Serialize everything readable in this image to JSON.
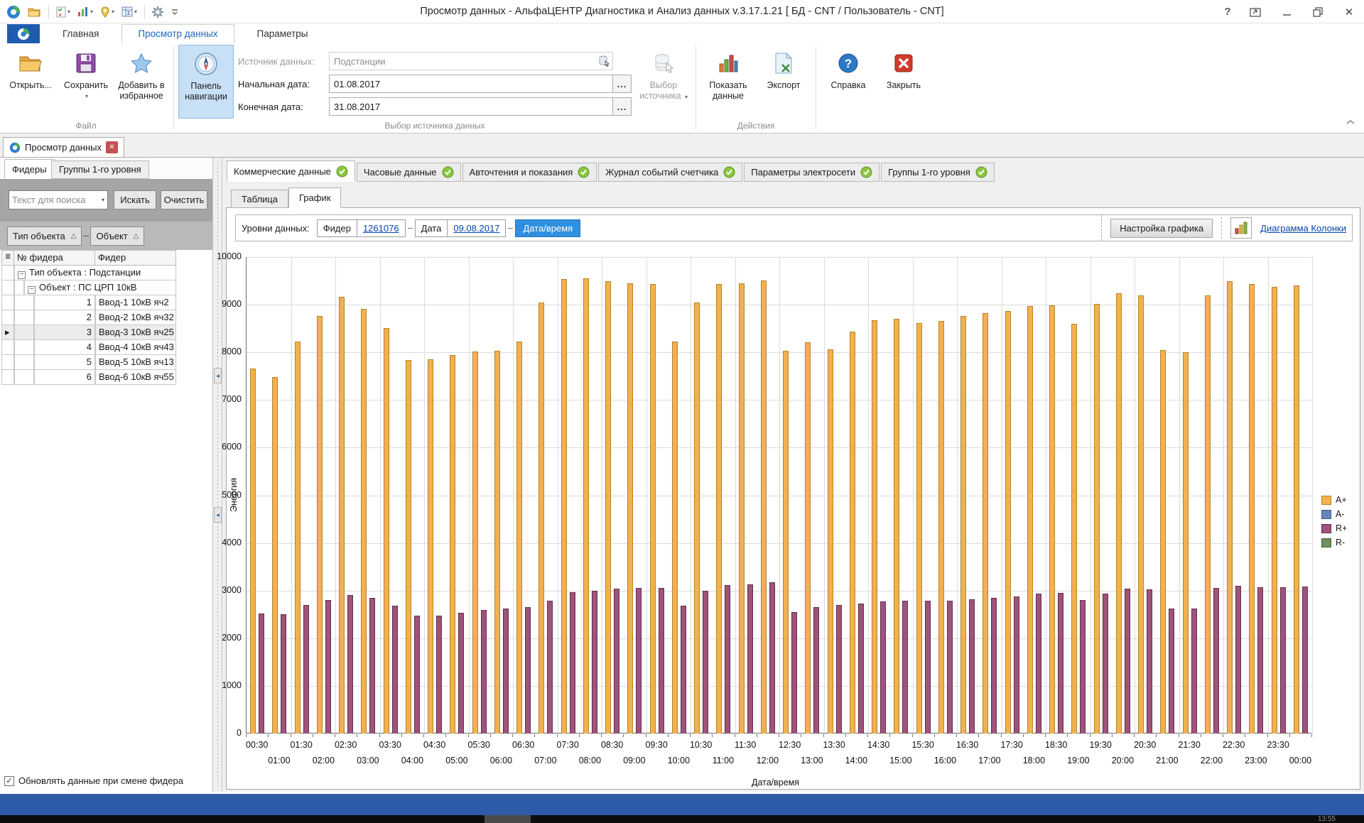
{
  "window": {
    "title": "Просмотр данных - АльфаЦЕНТР Диагностика и Анализ данных v.3.17.1.21  [ БД - CNT / Пользователь - CNT]",
    "taskbar_clock": "13:55"
  },
  "qat": {
    "icons": [
      "app-logo",
      "open-folder",
      "checklist",
      "bar-chart",
      "map-pin",
      "summary-table",
      "settings-gear",
      "customize-ribbon"
    ]
  },
  "ribbon": {
    "tabs": [
      "Главная",
      "Просмотр данных",
      "Параметры"
    ],
    "active_tab": "Просмотр данных",
    "open_label": "Открыть...",
    "save_label": "Сохранить",
    "fav_label_1": "Добавить в",
    "fav_label_2": "избранное",
    "nav_label_1": "Панель",
    "nav_label_2": "навигации",
    "source_field": {
      "label": "Источник данных:",
      "value": "Подстанции"
    },
    "date_from_field": {
      "label": "Начальная дата:",
      "value": "01.08.2017"
    },
    "date_to_field": {
      "label": "Конечная дата:",
      "value": "31.08.2017"
    },
    "ellipsis": "...",
    "source_select_1": "Выбор",
    "source_select_2": "источника",
    "show_data_1": "Показать",
    "show_data_2": "данные",
    "export_label": "Экспорт",
    "help_label": "Справка",
    "close_label": "Закрыть",
    "group_file": "Файл",
    "group_source": "Выбор источника данных",
    "group_actions": "Действия"
  },
  "doc_tab": {
    "label": "Просмотр данных"
  },
  "left_panel": {
    "tabs": [
      "Фидеры",
      "Группы 1-го уровня"
    ],
    "active_tab": "Фидеры",
    "search": {
      "placeholder": "Текст для поиска",
      "search_btn": "Искать",
      "clear_btn": "Очистить"
    },
    "group_by": [
      "Тип объекта",
      "Объект"
    ],
    "grid": {
      "columns": [
        "№ фидера",
        "Фидер"
      ],
      "group_row_1": "Тип объекта : Подстанции",
      "group_row_2": "Объект : ПС ЦРП 10кВ",
      "rows": [
        {
          "num": "1",
          "name": "Ввод-1 10кВ яч2"
        },
        {
          "num": "2",
          "name": "Ввод-2 10кВ яч32"
        },
        {
          "num": "3",
          "name": "Ввод-3 10кВ яч25"
        },
        {
          "num": "4",
          "name": "Ввод-4 10кВ яч43"
        },
        {
          "num": "5",
          "name": "Ввод-5 10кВ яч13"
        },
        {
          "num": "6",
          "name": "Ввод-6 10кВ яч55"
        }
      ],
      "selected_row_num": "3"
    },
    "footer_checkbox": "Обновлять данные при смене фидера",
    "footer_checkbox_checked": true
  },
  "main": {
    "data_tabs": [
      "Коммерческие данные",
      "Часовые данные",
      "Авточтения и показания",
      "Журнал событий счетчика",
      "Параметры электросети",
      "Группы 1-го уровня"
    ],
    "active_data_tab": "Коммерческие данные",
    "view_tabs": [
      "Таблица",
      "График"
    ],
    "active_view_tab": "График",
    "breadcrumb": {
      "label": "Уровни данных:",
      "items": [
        {
          "prefix": "Фидер",
          "value": "1261076"
        },
        {
          "prefix": "Дата",
          "value": "09.08.2017"
        }
      ],
      "current": "Дата/время"
    },
    "chart_controls": {
      "settings_btn": "Настройка графика",
      "type_link": "Диаграмма Колонки"
    }
  },
  "chart_data": {
    "type": "bar",
    "title": "",
    "xlabel": "Дата/время",
    "ylabel": "Энергия",
    "ylim": [
      0,
      10000
    ],
    "ytick_step": 1000,
    "grid": true,
    "legend_position": "right",
    "categories": [
      "00:30",
      "01:00",
      "01:30",
      "02:00",
      "02:30",
      "03:00",
      "03:30",
      "04:00",
      "04:30",
      "05:00",
      "05:30",
      "06:00",
      "06:30",
      "07:00",
      "07:30",
      "08:00",
      "08:30",
      "09:00",
      "09:30",
      "10:00",
      "10:30",
      "11:00",
      "11:30",
      "12:00",
      "12:30",
      "13:00",
      "13:30",
      "14:00",
      "14:30",
      "15:00",
      "15:30",
      "16:00",
      "16:30",
      "17:00",
      "17:30",
      "18:00",
      "18:30",
      "19:00",
      "19:30",
      "20:00",
      "20:30",
      "21:00",
      "21:30",
      "22:00",
      "22:30",
      "23:00",
      "23:30",
      "00:00"
    ],
    "series": [
      {
        "name": "A+",
        "color": "#F2B04F",
        "border": "#B8812C",
        "values": [
          7660,
          7480,
          8230,
          8770,
          9170,
          8910,
          8510,
          7840,
          7860,
          7940,
          8020,
          8040,
          8230,
          9050,
          9540,
          9560,
          9500,
          9450,
          9430,
          8230,
          9040,
          9430,
          9450,
          9510,
          8040,
          8210,
          8060,
          8440,
          8670,
          8700,
          8620,
          8660,
          8770,
          8820,
          8870,
          8970,
          8990,
          8600,
          9010,
          9240,
          9190,
          8050,
          8000,
          9190,
          9490,
          9440,
          9370,
          9410
        ]
      },
      {
        "name": "A-",
        "color": "#6787B7",
        "border": "#3A5E94",
        "values": [
          0,
          0,
          0,
          0,
          0,
          0,
          0,
          0,
          0,
          0,
          0,
          0,
          0,
          0,
          0,
          0,
          0,
          0,
          0,
          0,
          0,
          0,
          0,
          0,
          0,
          0,
          0,
          0,
          0,
          0,
          0,
          0,
          0,
          0,
          0,
          0,
          0,
          0,
          0,
          0,
          0,
          0,
          0,
          0,
          0,
          0,
          0,
          0
        ]
      },
      {
        "name": "R+",
        "color": "#A0527C",
        "border": "#5F3049",
        "values": [
          2520,
          2500,
          2700,
          2800,
          2910,
          2840,
          2680,
          2470,
          2470,
          2540,
          2600,
          2620,
          2660,
          2780,
          2970,
          2990,
          3040,
          3050,
          3050,
          2680,
          2990,
          3110,
          3130,
          3170,
          2550,
          2650,
          2700,
          2720,
          2770,
          2790,
          2790,
          2790,
          2820,
          2850,
          2870,
          2930,
          2950,
          2800,
          2930,
          3040,
          3020,
          2620,
          2630,
          3050,
          3100,
          3070,
          3070,
          3090
        ]
      },
      {
        "name": "R-",
        "color": "#708E5E",
        "border": "#45663B",
        "values": [
          0,
          0,
          0,
          0,
          0,
          0,
          0,
          0,
          0,
          0,
          0,
          0,
          0,
          0,
          0,
          0,
          0,
          0,
          0,
          0,
          0,
          0,
          0,
          0,
          0,
          0,
          0,
          0,
          0,
          0,
          0,
          0,
          0,
          0,
          0,
          0,
          0,
          0,
          0,
          0,
          0,
          0,
          0,
          0,
          0,
          0,
          0,
          0
        ]
      }
    ]
  },
  "colors": {
    "accent_blue": "#2f8fe0",
    "statusbar_blue": "#2d5ba8",
    "nav_toggle_bg": "#c8e0f6",
    "bar_orange": "#F2B04F",
    "bar_purple": "#A0527C"
  }
}
